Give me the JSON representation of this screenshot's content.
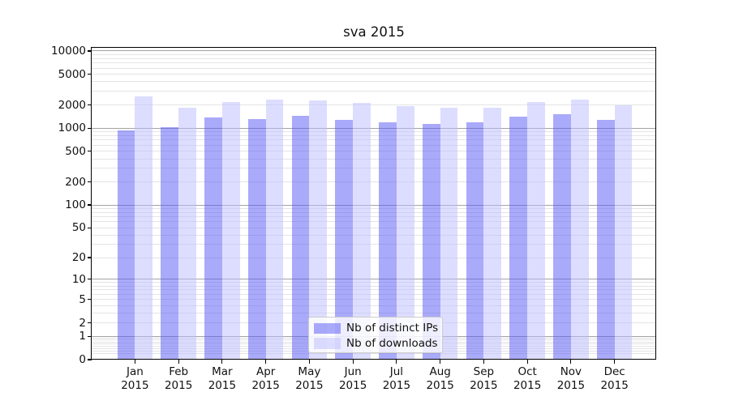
{
  "chart_data": {
    "type": "bar",
    "title": "sva 2015",
    "categories": [
      {
        "month": "Jan",
        "year": "2015"
      },
      {
        "month": "Feb",
        "year": "2015"
      },
      {
        "month": "Mar",
        "year": "2015"
      },
      {
        "month": "Apr",
        "year": "2015"
      },
      {
        "month": "May",
        "year": "2015"
      },
      {
        "month": "Jun",
        "year": "2015"
      },
      {
        "month": "Jul",
        "year": "2015"
      },
      {
        "month": "Aug",
        "year": "2015"
      },
      {
        "month": "Sep",
        "year": "2015"
      },
      {
        "month": "Oct",
        "year": "2015"
      },
      {
        "month": "Nov",
        "year": "2015"
      },
      {
        "month": "Dec",
        "year": "2015"
      }
    ],
    "series": [
      {
        "name": "Nb of distinct IPs",
        "color": "rgba(85,85,246,0.5)",
        "values": [
          940,
          1020,
          1380,
          1300,
          1460,
          1270,
          1180,
          1140,
          1200,
          1400,
          1500,
          1270
        ]
      },
      {
        "name": "Nb of downloads",
        "color": "rgba(187,187,255,0.5)",
        "values": [
          2600,
          1830,
          2200,
          2320,
          2270,
          2110,
          1930,
          1840,
          1860,
          2200,
          2320,
          1980
        ]
      }
    ],
    "y_axis": {
      "scale": "log1p",
      "ticks": [
        0,
        1,
        2,
        5,
        10,
        20,
        50,
        100,
        200,
        500,
        1000,
        2000,
        5000,
        10000
      ],
      "max": 11000,
      "major_gridlines": [
        1,
        10,
        100,
        1000,
        10000
      ]
    },
    "legend": {
      "position": "bottom-center",
      "entries": [
        "Nb of distinct IPs",
        "Nb of downloads"
      ]
    },
    "grid": true
  },
  "colors": {
    "background": "#ffffff",
    "spine": "#000000",
    "major_gridline": "#a3a3a3",
    "minor_gridline": "#e4e4e4",
    "text": "#111111",
    "legend_border": "#cccccc",
    "legend_background": "rgba(255,255,255,0.8)",
    "bar_distinct_ips": "rgba(85,85,246,0.5)",
    "bar_downloads": "rgba(187,187,255,0.5)"
  }
}
